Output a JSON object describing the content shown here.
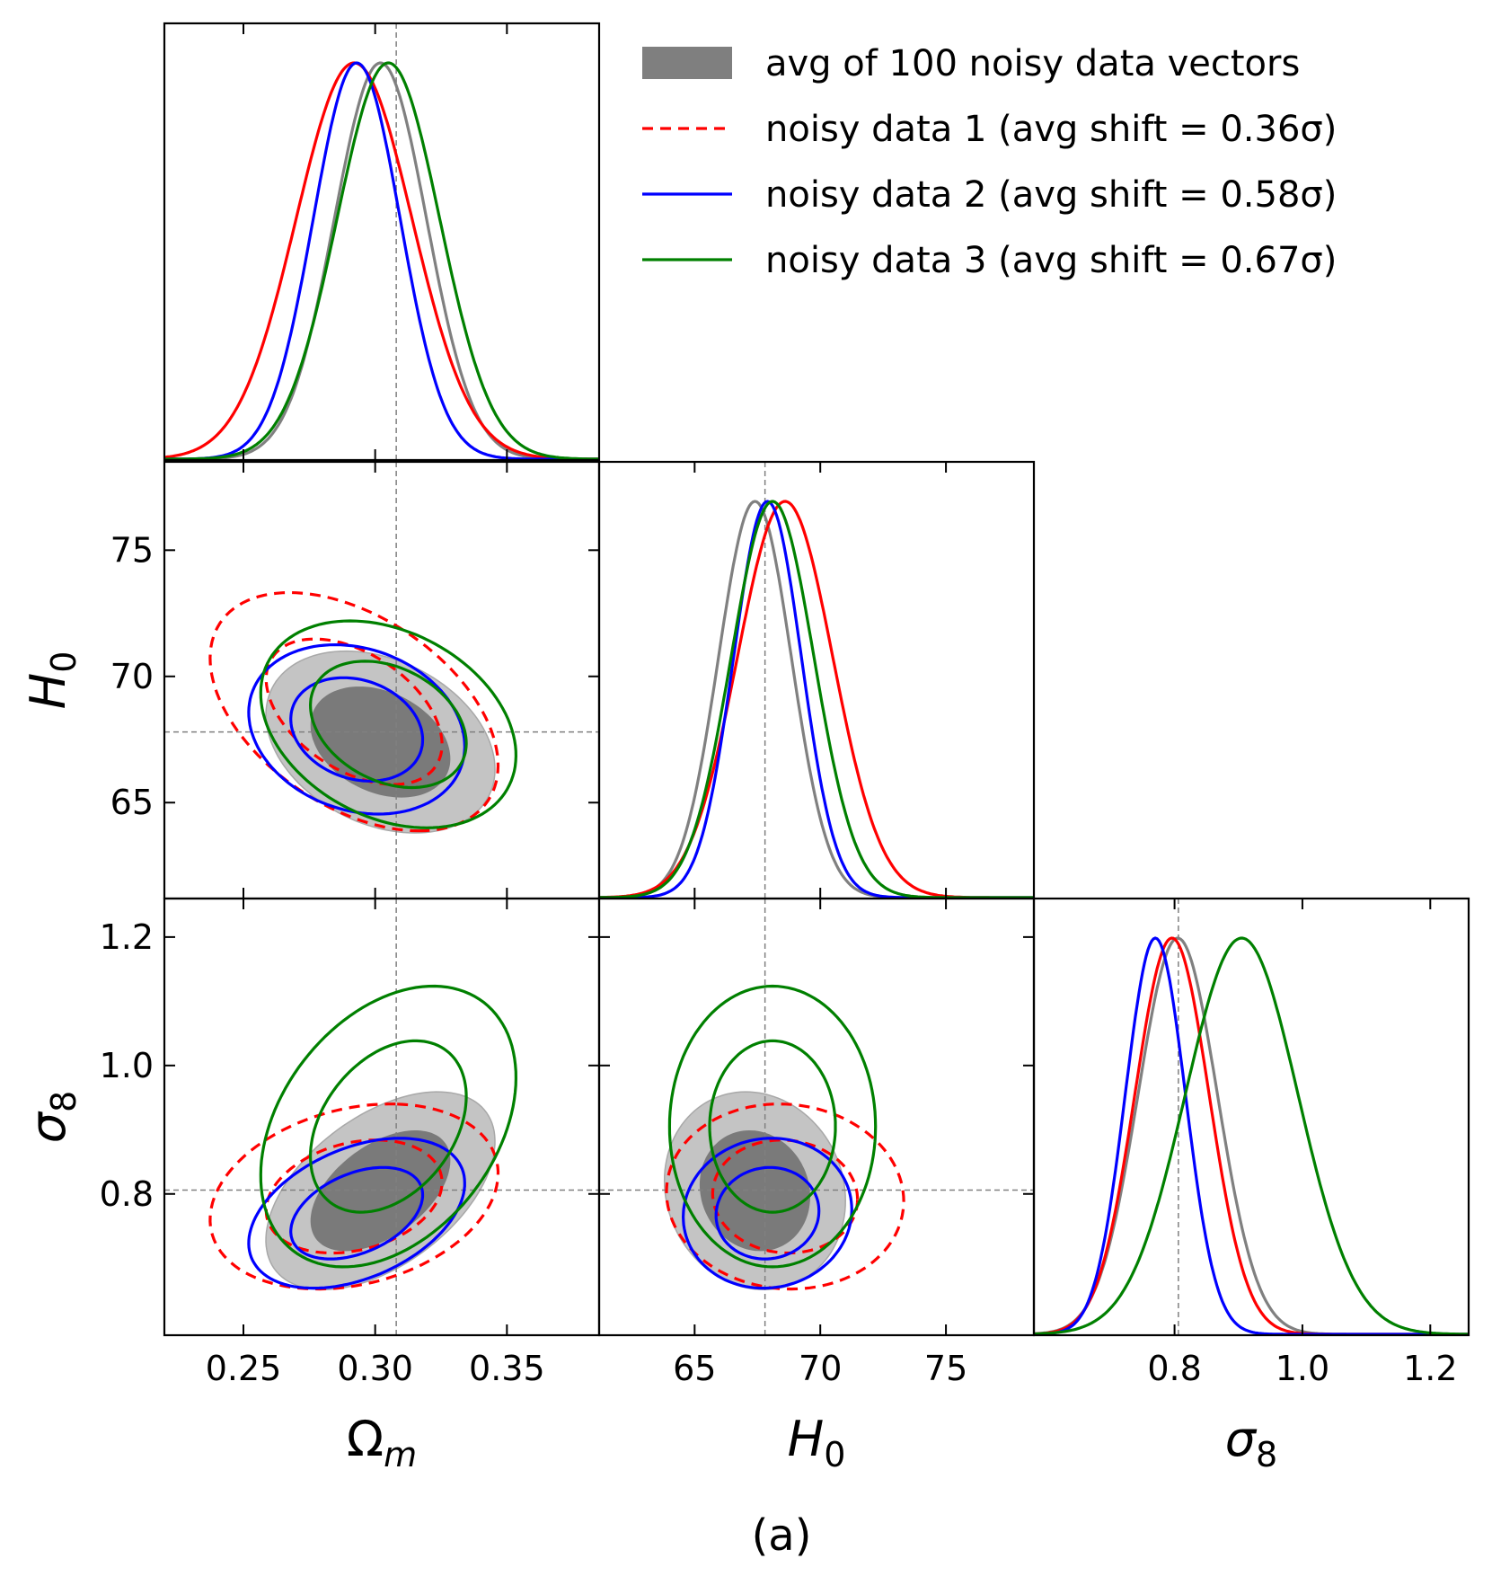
{
  "chart_data": {
    "type": "corner",
    "caption": "(a)",
    "parameters": [
      {
        "key": "om",
        "label": "Ω",
        "sub": "m",
        "italic": false,
        "range": [
          0.22,
          0.385
        ],
        "ticks": [
          0.25,
          0.3,
          0.35
        ],
        "tick_labels": [
          "0.25",
          "0.30",
          "0.35"
        ],
        "fiducial": 0.308
      },
      {
        "key": "h0",
        "label": "H",
        "sub": "0",
        "italic": true,
        "range": [
          61.2,
          78.5
        ],
        "ticks": [
          65,
          70,
          75
        ],
        "tick_labels": [
          "65",
          "70",
          "75"
        ],
        "fiducial": 67.8
      },
      {
        "key": "s8",
        "label": "σ",
        "sub": "8",
        "italic": true,
        "range": [
          0.58,
          1.26
        ],
        "ticks": [
          0.8,
          1.0,
          1.2
        ],
        "tick_labels": [
          "0.8",
          "1.0",
          "1.2"
        ],
        "fiducial": 0.806
      }
    ],
    "legend": {
      "placement": "upper-right",
      "entries": [
        "avg of 100 noisy data vectors",
        "noisy data 1 (avg shift = 0.36σ)",
        "noisy data 2 (avg shift = 0.58σ)",
        "noisy data 3 (avg shift = 0.67σ)"
      ]
    },
    "series": [
      {
        "name": "avg of 100 noisy data vectors",
        "style": "filled",
        "color": "#808080",
        "mean": [
          0.302,
          67.4,
          0.805
        ],
        "std": [
          0.0175,
          1.45,
          0.062
        ],
        "corr": {
          "om_h0": -0.3,
          "om_s8": 0.5,
          "h0_s8": -0.1
        }
      },
      {
        "name": "noisy data 1 (avg shift = 0.36σ)",
        "style": "dashed",
        "color": "#ff0000",
        "mean": [
          0.292,
          68.6,
          0.796
        ],
        "std": [
          0.022,
          1.9,
          0.058
        ],
        "corr": {
          "om_h0": -0.45,
          "om_s8": 0.25,
          "h0_s8": -0.05
        }
      },
      {
        "name": "noisy data 2 (avg shift = 0.58σ)",
        "style": "solid",
        "color": "#0000ff",
        "mean": [
          0.293,
          67.9,
          0.77
        ],
        "std": [
          0.0165,
          1.35,
          0.047
        ],
        "corr": {
          "om_h0": -0.2,
          "om_s8": 0.4,
          "h0_s8": 0.05
        }
      },
      {
        "name": "noisy data 3 (avg shift = 0.67σ)",
        "style": "solid",
        "color": "#008000",
        "mean": [
          0.305,
          68.1,
          0.905
        ],
        "std": [
          0.0195,
          1.65,
          0.088
        ],
        "corr": {
          "om_h0": -0.3,
          "om_s8": 0.35,
          "h0_s8": 0.0
        }
      }
    ],
    "grid": false
  }
}
